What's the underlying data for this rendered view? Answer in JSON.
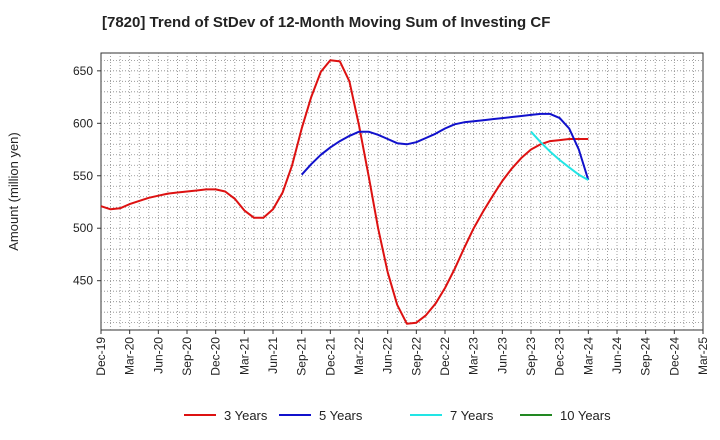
{
  "chart_data": {
    "type": "line",
    "title": "[7820]  Trend of StDev of 12-Month Moving Sum of Investing CF",
    "xlabel": "",
    "ylabel": "Amount (million yen)",
    "ylim": [
      403,
      667
    ],
    "yticks": [
      450,
      500,
      550,
      600,
      650
    ],
    "x_ticks": [
      "Dec-19",
      "Mar-20",
      "Jun-20",
      "Sep-20",
      "Dec-20",
      "Mar-21",
      "Jun-21",
      "Sep-21",
      "Dec-21",
      "Mar-22",
      "Jun-22",
      "Sep-22",
      "Dec-22",
      "Mar-23",
      "Jun-23",
      "Sep-23",
      "Dec-23",
      "Mar-24",
      "Jun-24",
      "Sep-24",
      "Dec-24",
      "Mar-25"
    ],
    "x_start": "2019-12",
    "x_end": "2025-03",
    "grid": true,
    "legend_position": "bottom",
    "series": [
      {
        "name": "3 Years",
        "color": "#dd1111",
        "x": [
          "2019-12",
          "2020-01",
          "2020-02",
          "2020-03",
          "2020-04",
          "2020-05",
          "2020-06",
          "2020-07",
          "2020-08",
          "2020-09",
          "2020-10",
          "2020-11",
          "2020-12",
          "2021-01",
          "2021-02",
          "2021-03",
          "2021-04",
          "2021-05",
          "2021-06",
          "2021-07",
          "2021-08",
          "2021-09",
          "2021-10",
          "2021-11",
          "2021-12",
          "2022-01",
          "2022-02",
          "2022-03",
          "2022-04",
          "2022-05",
          "2022-06",
          "2022-07",
          "2022-08",
          "2022-09",
          "2022-10",
          "2022-11",
          "2022-12",
          "2023-01",
          "2023-02",
          "2023-03",
          "2023-04",
          "2023-05",
          "2023-06",
          "2023-07",
          "2023-08",
          "2023-09",
          "2023-10",
          "2023-11",
          "2023-12",
          "2024-01",
          "2024-02",
          "2024-03"
        ],
        "values": [
          521,
          518,
          519,
          523,
          526,
          529,
          531,
          533,
          534,
          535,
          536,
          537,
          537,
          535,
          528,
          517,
          510,
          510,
          518,
          534,
          560,
          595,
          625,
          649,
          660,
          659,
          640,
          598,
          550,
          500,
          458,
          427,
          409,
          410,
          417,
          428,
          443,
          461,
          481,
          500,
          516,
          531,
          545,
          557,
          567,
          575,
          580,
          583,
          584,
          585,
          585,
          585
        ]
      },
      {
        "name": "5 Years",
        "color": "#1111cc",
        "x": [
          "2021-09",
          "2021-10",
          "2021-11",
          "2021-12",
          "2022-01",
          "2022-02",
          "2022-03",
          "2022-04",
          "2022-05",
          "2022-06",
          "2022-07",
          "2022-08",
          "2022-09",
          "2022-10",
          "2022-11",
          "2022-12",
          "2023-01",
          "2023-02",
          "2023-03",
          "2023-04",
          "2023-05",
          "2023-06",
          "2023-07",
          "2023-08",
          "2023-09",
          "2023-10",
          "2023-11",
          "2023-12",
          "2024-01",
          "2024-02",
          "2024-03"
        ],
        "values": [
          551,
          561,
          570,
          577,
          583,
          588,
          592,
          592,
          589,
          585,
          581,
          580,
          582,
          586,
          590,
          595,
          599,
          601,
          602,
          603,
          604,
          605,
          606,
          607,
          608,
          609,
          609,
          605,
          595,
          575,
          546
        ]
      },
      {
        "name": "7 Years",
        "color": "#22e5e5",
        "x": [
          "2023-09",
          "2023-10",
          "2023-11",
          "2023-12",
          "2024-01",
          "2024-02",
          "2024-03"
        ],
        "values": [
          592,
          582,
          573,
          565,
          558,
          551,
          546
        ]
      },
      {
        "name": "10 Years",
        "color": "#228822",
        "x": [],
        "values": []
      }
    ]
  }
}
